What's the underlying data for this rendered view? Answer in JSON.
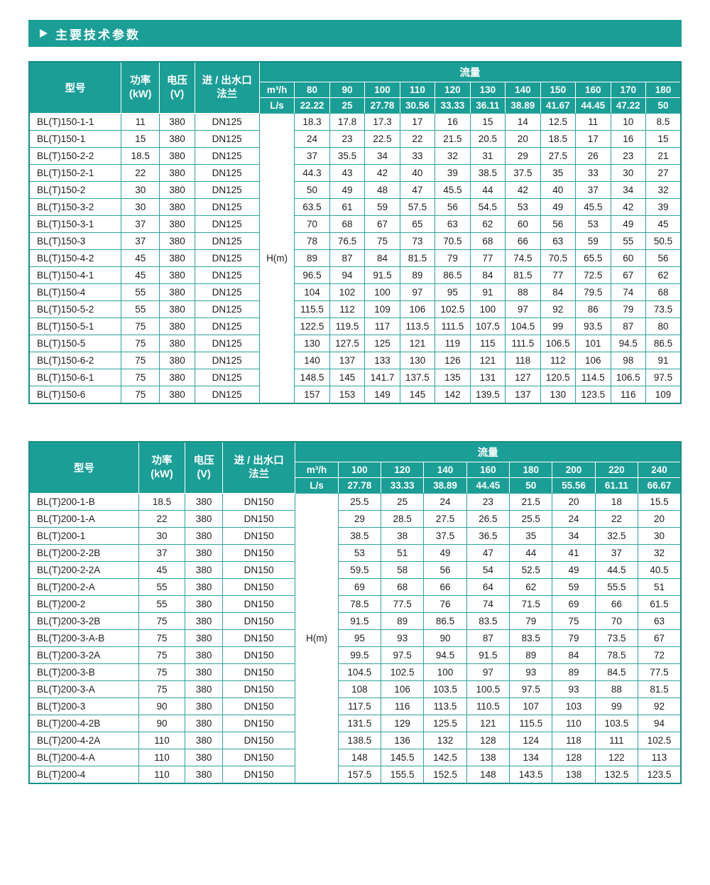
{
  "page": {
    "title": "主要技术参数",
    "accent_color": "#1b9e96"
  },
  "tables": [
    {
      "headers": {
        "model": "型号",
        "power": "功率\n(kW)",
        "voltage": "电压\n(V)",
        "flange": "进 / 出水口\n法兰",
        "flow": "流量",
        "m3h": "m³/h",
        "ls": "L/s",
        "head_unit": "H(m)"
      },
      "flow_m3h": [
        "80",
        "90",
        "100",
        "110",
        "120",
        "130",
        "140",
        "150",
        "160",
        "170",
        "180"
      ],
      "flow_ls": [
        "22.22",
        "25",
        "27.78",
        "30.56",
        "33.33",
        "36.11",
        "38.89",
        "41.67",
        "44.45",
        "47.22",
        "50"
      ],
      "rows": [
        {
          "model": "BL(T)150-1-1",
          "power": "11",
          "voltage": "380",
          "flange": "DN125",
          "values": [
            "18.3",
            "17.8",
            "17.3",
            "17",
            "16",
            "15",
            "14",
            "12.5",
            "11",
            "10",
            "8.5"
          ]
        },
        {
          "model": "BL(T)150-1",
          "power": "15",
          "voltage": "380",
          "flange": "DN125",
          "values": [
            "24",
            "23",
            "22.5",
            "22",
            "21.5",
            "20.5",
            "20",
            "18.5",
            "17",
            "16",
            "15"
          ]
        },
        {
          "model": "BL(T)150-2-2",
          "power": "18.5",
          "voltage": "380",
          "flange": "DN125",
          "values": [
            "37",
            "35.5",
            "34",
            "33",
            "32",
            "31",
            "29",
            "27.5",
            "26",
            "23",
            "21"
          ]
        },
        {
          "model": "BL(T)150-2-1",
          "power": "22",
          "voltage": "380",
          "flange": "DN125",
          "values": [
            "44.3",
            "43",
            "42",
            "40",
            "39",
            "38.5",
            "37.5",
            "35",
            "33",
            "30",
            "27"
          ]
        },
        {
          "model": "BL(T)150-2",
          "power": "30",
          "voltage": "380",
          "flange": "DN125",
          "values": [
            "50",
            "49",
            "48",
            "47",
            "45.5",
            "44",
            "42",
            "40",
            "37",
            "34",
            "32"
          ]
        },
        {
          "model": "BL(T)150-3-2",
          "power": "30",
          "voltage": "380",
          "flange": "DN125",
          "values": [
            "63.5",
            "61",
            "59",
            "57.5",
            "56",
            "54.5",
            "53",
            "49",
            "45.5",
            "42",
            "39"
          ]
        },
        {
          "model": "BL(T)150-3-1",
          "power": "37",
          "voltage": "380",
          "flange": "DN125",
          "values": [
            "70",
            "68",
            "67",
            "65",
            "63",
            "62",
            "60",
            "56",
            "53",
            "49",
            "45"
          ]
        },
        {
          "model": "BL(T)150-3",
          "power": "37",
          "voltage": "380",
          "flange": "DN125",
          "values": [
            "78",
            "76.5",
            "75",
            "73",
            "70.5",
            "68",
            "66",
            "63",
            "59",
            "55",
            "50.5"
          ]
        },
        {
          "model": "BL(T)150-4-2",
          "power": "45",
          "voltage": "380",
          "flange": "DN125",
          "values": [
            "89",
            "87",
            "84",
            "81.5",
            "79",
            "77",
            "74.5",
            "70.5",
            "65.5",
            "60",
            "56"
          ]
        },
        {
          "model": "BL(T)150-4-1",
          "power": "45",
          "voltage": "380",
          "flange": "DN125",
          "values": [
            "96.5",
            "94",
            "91.5",
            "89",
            "86.5",
            "84",
            "81.5",
            "77",
            "72.5",
            "67",
            "62"
          ]
        },
        {
          "model": "BL(T)150-4",
          "power": "55",
          "voltage": "380",
          "flange": "DN125",
          "values": [
            "104",
            "102",
            "100",
            "97",
            "95",
            "91",
            "88",
            "84",
            "79.5",
            "74",
            "68"
          ]
        },
        {
          "model": "BL(T)150-5-2",
          "power": "55",
          "voltage": "380",
          "flange": "DN125",
          "values": [
            "115.5",
            "112",
            "109",
            "106",
            "102.5",
            "100",
            "97",
            "92",
            "86",
            "79",
            "73.5"
          ]
        },
        {
          "model": "BL(T)150-5-1",
          "power": "75",
          "voltage": "380",
          "flange": "DN125",
          "values": [
            "122.5",
            "119.5",
            "117",
            "113.5",
            "111.5",
            "107.5",
            "104.5",
            "99",
            "93.5",
            "87",
            "80"
          ]
        },
        {
          "model": "BL(T)150-5",
          "power": "75",
          "voltage": "380",
          "flange": "DN125",
          "values": [
            "130",
            "127.5",
            "125",
            "121",
            "119",
            "115",
            "111.5",
            "106.5",
            "101",
            "94.5",
            "86.5"
          ]
        },
        {
          "model": "BL(T)150-6-2",
          "power": "75",
          "voltage": "380",
          "flange": "DN125",
          "values": [
            "140",
            "137",
            "133",
            "130",
            "126",
            "121",
            "118",
            "112",
            "106",
            "98",
            "91"
          ]
        },
        {
          "model": "BL(T)150-6-1",
          "power": "75",
          "voltage": "380",
          "flange": "DN125",
          "values": [
            "148.5",
            "145",
            "141.7",
            "137.5",
            "135",
            "131",
            "127",
            "120.5",
            "114.5",
            "106.5",
            "97.5"
          ]
        },
        {
          "model": "BL(T)150-6",
          "power": "75",
          "voltage": "380",
          "flange": "DN125",
          "values": [
            "157",
            "153",
            "149",
            "145",
            "142",
            "139.5",
            "137",
            "130",
            "123.5",
            "116",
            "109"
          ]
        }
      ]
    },
    {
      "headers": {
        "model": "型号",
        "power": "功率\n(kW)",
        "voltage": "电压\n(V)",
        "flange": "进 / 出水口\n法兰",
        "flow": "流量",
        "m3h": "m³/h",
        "ls": "L/s",
        "head_unit": "H(m)"
      },
      "flow_m3h": [
        "100",
        "120",
        "140",
        "160",
        "180",
        "200",
        "220",
        "240"
      ],
      "flow_ls": [
        "27.78",
        "33.33",
        "38.89",
        "44.45",
        "50",
        "55.56",
        "61.11",
        "66.67"
      ],
      "rows": [
        {
          "model": "BL(T)200-1-B",
          "power": "18.5",
          "voltage": "380",
          "flange": "DN150",
          "values": [
            "25.5",
            "25",
            "24",
            "23",
            "21.5",
            "20",
            "18",
            "15.5"
          ]
        },
        {
          "model": "BL(T)200-1-A",
          "power": "22",
          "voltage": "380",
          "flange": "DN150",
          "values": [
            "29",
            "28.5",
            "27.5",
            "26.5",
            "25.5",
            "24",
            "22",
            "20"
          ]
        },
        {
          "model": "BL(T)200-1",
          "power": "30",
          "voltage": "380",
          "flange": "DN150",
          "values": [
            "38.5",
            "38",
            "37.5",
            "36.5",
            "35",
            "34",
            "32.5",
            "30"
          ]
        },
        {
          "model": "BL(T)200-2-2B",
          "power": "37",
          "voltage": "380",
          "flange": "DN150",
          "values": [
            "53",
            "51",
            "49",
            "47",
            "44",
            "41",
            "37",
            "32"
          ]
        },
        {
          "model": "BL(T)200-2-2A",
          "power": "45",
          "voltage": "380",
          "flange": "DN150",
          "values": [
            "59.5",
            "58",
            "56",
            "54",
            "52.5",
            "49",
            "44.5",
            "40.5"
          ]
        },
        {
          "model": "BL(T)200-2-A",
          "power": "55",
          "voltage": "380",
          "flange": "DN150",
          "values": [
            "69",
            "68",
            "66",
            "64",
            "62",
            "59",
            "55.5",
            "51"
          ]
        },
        {
          "model": "BL(T)200-2",
          "power": "55",
          "voltage": "380",
          "flange": "DN150",
          "values": [
            "78.5",
            "77.5",
            "76",
            "74",
            "71.5",
            "69",
            "66",
            "61.5"
          ]
        },
        {
          "model": "BL(T)200-3-2B",
          "power": "75",
          "voltage": "380",
          "flange": "DN150",
          "values": [
            "91.5",
            "89",
            "86.5",
            "83.5",
            "79",
            "75",
            "70",
            "63"
          ]
        },
        {
          "model": "BL(T)200-3-A-B",
          "power": "75",
          "voltage": "380",
          "flange": "DN150",
          "values": [
            "95",
            "93",
            "90",
            "87",
            "83.5",
            "79",
            "73.5",
            "67"
          ]
        },
        {
          "model": "BL(T)200-3-2A",
          "power": "75",
          "voltage": "380",
          "flange": "DN150",
          "values": [
            "99.5",
            "97.5",
            "94.5",
            "91.5",
            "89",
            "84",
            "78.5",
            "72"
          ]
        },
        {
          "model": "BL(T)200-3-B",
          "power": "75",
          "voltage": "380",
          "flange": "DN150",
          "values": [
            "104.5",
            "102.5",
            "100",
            "97",
            "93",
            "89",
            "84.5",
            "77.5"
          ]
        },
        {
          "model": "BL(T)200-3-A",
          "power": "75",
          "voltage": "380",
          "flange": "DN150",
          "values": [
            "108",
            "106",
            "103.5",
            "100.5",
            "97.5",
            "93",
            "88",
            "81.5"
          ]
        },
        {
          "model": "BL(T)200-3",
          "power": "90",
          "voltage": "380",
          "flange": "DN150",
          "values": [
            "117.5",
            "116",
            "113.5",
            "110.5",
            "107",
            "103",
            "99",
            "92"
          ]
        },
        {
          "model": "BL(T)200-4-2B",
          "power": "90",
          "voltage": "380",
          "flange": "DN150",
          "values": [
            "131.5",
            "129",
            "125.5",
            "121",
            "115.5",
            "110",
            "103.5",
            "94"
          ]
        },
        {
          "model": "BL(T)200-4-2A",
          "power": "110",
          "voltage": "380",
          "flange": "DN150",
          "values": [
            "138.5",
            "136",
            "132",
            "128",
            "124",
            "118",
            "111",
            "102.5"
          ]
        },
        {
          "model": "BL(T)200-4-A",
          "power": "110",
          "voltage": "380",
          "flange": "DN150",
          "values": [
            "148",
            "145.5",
            "142.5",
            "138",
            "134",
            "128",
            "122",
            "113"
          ]
        },
        {
          "model": "BL(T)200-4",
          "power": "110",
          "voltage": "380",
          "flange": "DN150",
          "values": [
            "157.5",
            "155.5",
            "152.5",
            "148",
            "143.5",
            "138",
            "132.5",
            "123.5"
          ]
        }
      ]
    }
  ]
}
